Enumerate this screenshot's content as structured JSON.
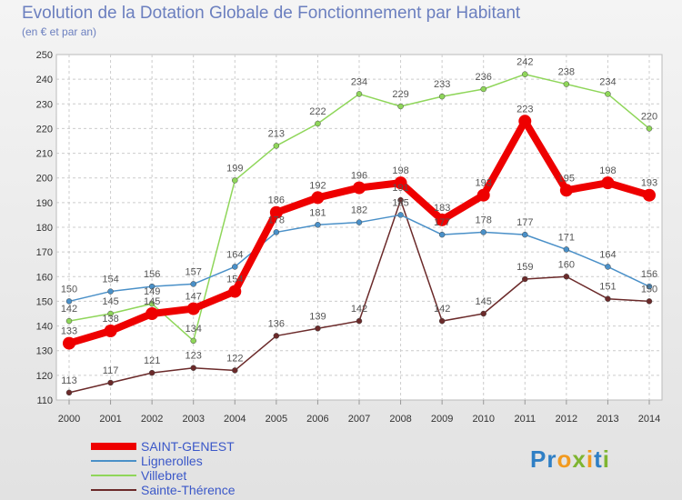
{
  "header": {
    "title": "Evolution de la Dotation Globale de Fonctionnement par Habitant",
    "subtitle": "(en € et par an)"
  },
  "logo": {
    "text": "Proxiti"
  },
  "chart_data": {
    "type": "line",
    "title": "Evolution de la Dotation Globale de Fonctionnement par Habitant",
    "subtitle": "(en € et par an)",
    "xlabel": "",
    "ylabel": "",
    "x": [
      "2000",
      "2001",
      "2002",
      "2003",
      "2004",
      "2005",
      "2006",
      "2007",
      "2008",
      "2009",
      "2010",
      "2011",
      "2012",
      "2013",
      "2014"
    ],
    "ylim": [
      110,
      250
    ],
    "yticks": [
      110,
      120,
      130,
      140,
      150,
      160,
      170,
      180,
      190,
      200,
      210,
      220,
      230,
      240,
      250
    ],
    "grid": true,
    "legend_position": "bottom-left",
    "series": [
      {
        "name": "SAINT-GENEST",
        "color": "#ee0000",
        "values": [
          133,
          138,
          145,
          147,
          154,
          186,
          192,
          196,
          198,
          183,
          193,
          223,
          195,
          198,
          193
        ]
      },
      {
        "name": "Lignerolles",
        "color": "#4a90c8",
        "values": [
          150,
          154,
          156,
          157,
          164,
          178,
          181,
          182,
          185,
          177,
          178,
          177,
          171,
          164,
          156
        ]
      },
      {
        "name": "Villebret",
        "color": "#8fd65a",
        "values": [
          142,
          145,
          149,
          134,
          199,
          213,
          222,
          234,
          229,
          233,
          236,
          242,
          238,
          234,
          220
        ]
      },
      {
        "name": "Sainte-Thérence",
        "color": "#6b2a2a",
        "values": [
          113,
          117,
          121,
          123,
          122,
          136,
          139,
          142,
          191,
          142,
          145,
          159,
          160,
          151,
          150
        ]
      }
    ]
  }
}
